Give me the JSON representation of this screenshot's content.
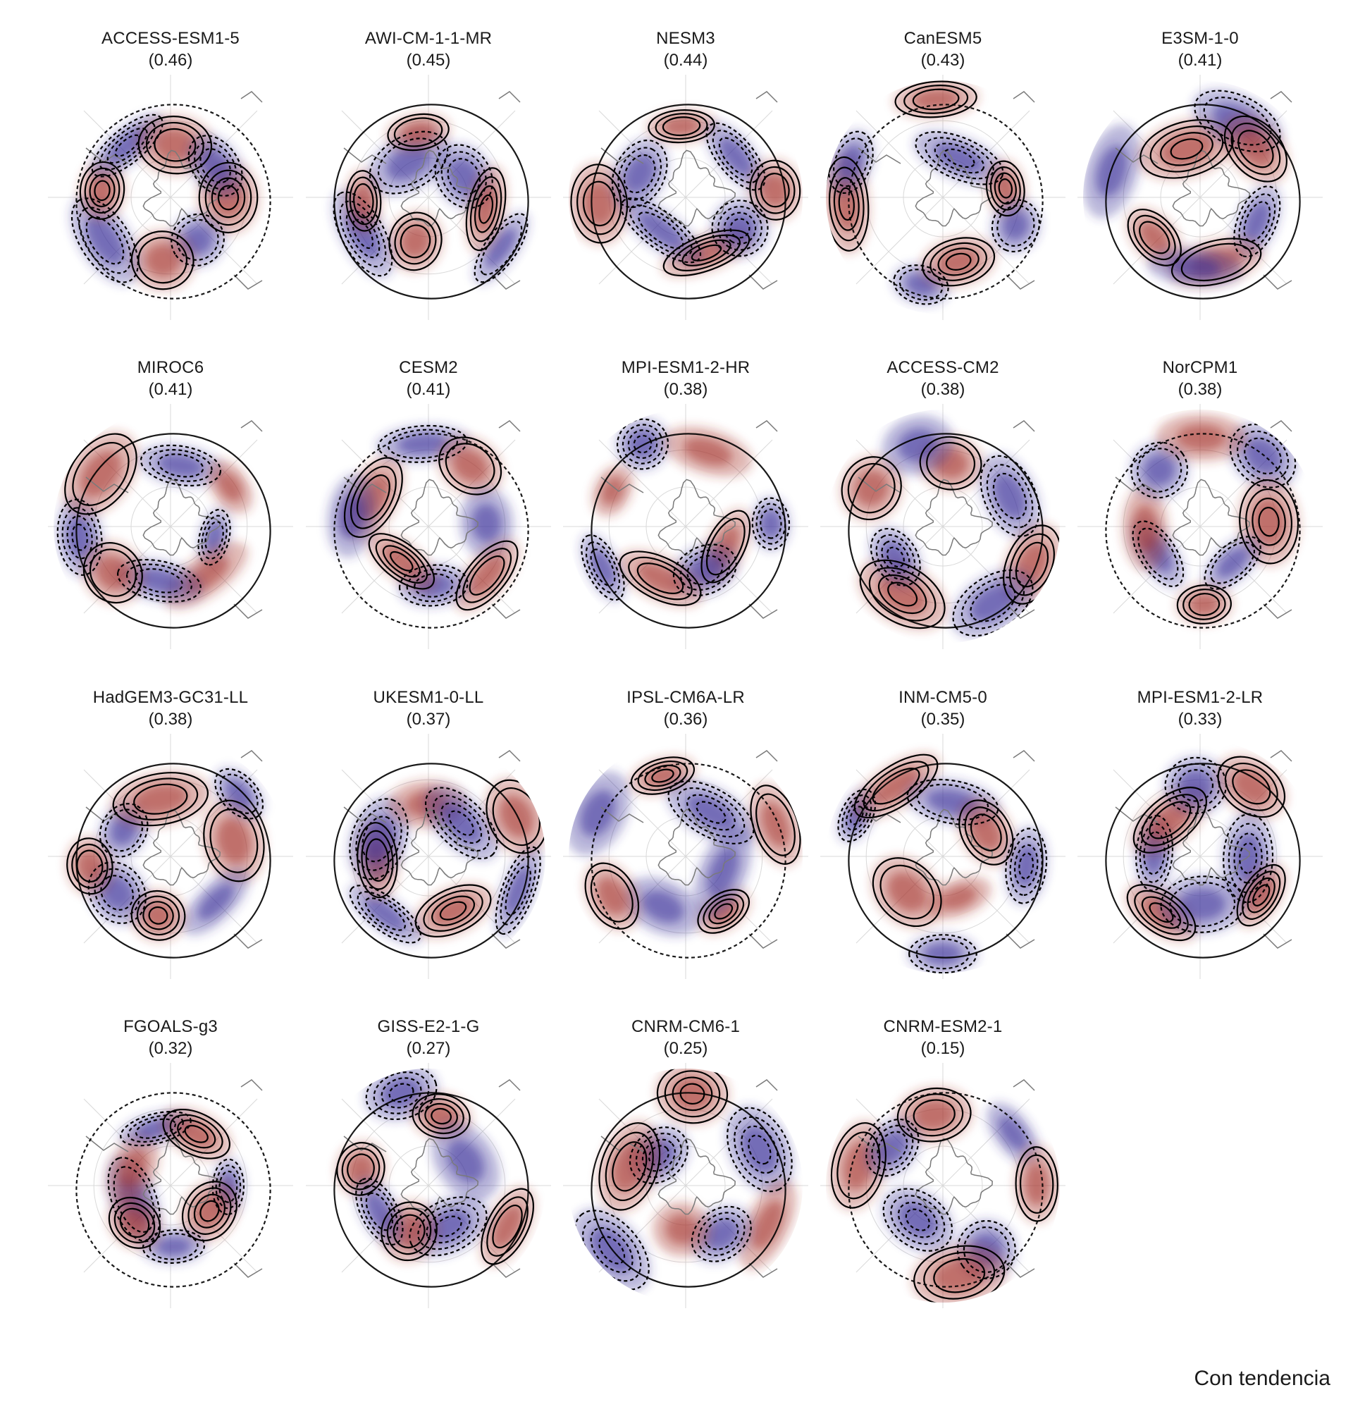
{
  "figure": {
    "caption": "Con tendencia",
    "colors": {
      "positive_anomaly": "#a5352e",
      "negative_anomaly": "#3a3199",
      "positive_contour": "#000000",
      "negative_contour": "#000000",
      "coastline": "#7a7a7a",
      "graticule": "#d9d9d9"
    },
    "layout": "grid 5 columns x 4 rows, polar stereographic maps of the Southern Hemisphere",
    "shading": "red/blue filled anomalies",
    "contours": "solid = positive, dashed = negative"
  },
  "panels": [
    {
      "model": "ACCESS-ESM1-5",
      "score": "(0.46)"
    },
    {
      "model": "AWI-CM-1-1-MR",
      "score": "(0.45)"
    },
    {
      "model": "NESM3",
      "score": "(0.44)"
    },
    {
      "model": "CanESM5",
      "score": "(0.43)"
    },
    {
      "model": "E3SM-1-0",
      "score": "(0.41)"
    },
    {
      "model": "MIROC6",
      "score": "(0.41)"
    },
    {
      "model": "CESM2",
      "score": "(0.41)"
    },
    {
      "model": "MPI-ESM1-2-HR",
      "score": "(0.38)"
    },
    {
      "model": "ACCESS-CM2",
      "score": "(0.38)"
    },
    {
      "model": "NorCPM1",
      "score": "(0.38)"
    },
    {
      "model": "HadGEM3-GC31-LL",
      "score": "(0.38)"
    },
    {
      "model": "UKESM1-0-LL",
      "score": "(0.37)"
    },
    {
      "model": "IPSL-CM6A-LR",
      "score": "(0.36)"
    },
    {
      "model": "INM-CM5-0",
      "score": "(0.35)"
    },
    {
      "model": "MPI-ESM1-2-LR",
      "score": "(0.33)"
    },
    {
      "model": "FGOALS-g3",
      "score": "(0.32)"
    },
    {
      "model": "GISS-E2-1-G",
      "score": "(0.27)"
    },
    {
      "model": "CNRM-CM6-1",
      "score": "(0.25)"
    },
    {
      "model": "CNRM-ESM2-1",
      "score": "(0.15)"
    }
  ]
}
